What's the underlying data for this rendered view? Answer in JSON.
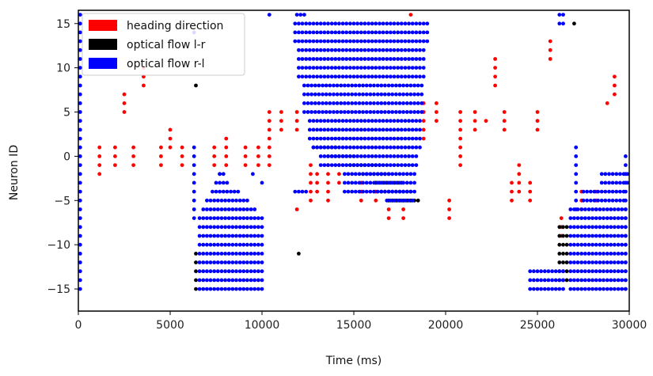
{
  "chart_data": {
    "type": "scatter",
    "title": "",
    "xlabel": "Time (ms)",
    "ylabel": "Neuron ID",
    "xlim": [
      0,
      30000
    ],
    "ylim": [
      -17.5,
      16.5
    ],
    "xticks": [
      0,
      5000,
      10000,
      15000,
      20000,
      25000,
      30000
    ],
    "yticks": [
      -15,
      -10,
      -5,
      0,
      5,
      10,
      15
    ],
    "grid": false,
    "legend": {
      "placement": "top-left"
    },
    "series": [
      {
        "name": "heading direction",
        "color": "#ff0000",
        "clusters": [
          {
            "x": [
              1150
            ],
            "y": [
              1,
              -2
            ]
          },
          {
            "x": [
              2000
            ],
            "y": [
              1,
              -1
            ]
          },
          {
            "x": [
              2500
            ],
            "y": [
              7,
              5
            ]
          },
          {
            "x": [
              3000
            ],
            "y": [
              1,
              -1
            ]
          },
          {
            "x": [
              3550
            ],
            "y": [
              10,
              8
            ]
          },
          {
            "x": [
              4500
            ],
            "y": [
              1,
              -1
            ]
          },
          {
            "x": [
              5000
            ],
            "y": [
              3,
              1
            ]
          },
          {
            "x": [
              5650
            ],
            "y": [
              1,
              -1
            ]
          },
          {
            "x": [
              7400
            ],
            "y": [
              1,
              -1
            ]
          },
          {
            "x": [
              8050
            ],
            "y": [
              2,
              -1
            ]
          },
          {
            "x": [
              9100
            ],
            "y": [
              1,
              -1
            ]
          },
          {
            "x": [
              9800
            ],
            "y": [
              1,
              -1
            ]
          },
          {
            "x": [
              10400
            ],
            "y": [
              5,
              -1
            ]
          },
          {
            "x": [
              11050
            ],
            "y": [
              5,
              3
            ]
          },
          {
            "x": [
              11900
            ],
            "y": [
              5,
              3
            ]
          },
          {
            "x": [
              11900
            ],
            "y": [
              -6,
              -6
            ]
          },
          {
            "x": [
              12650
            ],
            "y": [
              -1,
              -5
            ]
          },
          {
            "x": [
              13000
            ],
            "y": [
              -2,
              -4
            ]
          },
          {
            "x": [
              13600
            ],
            "y": [
              -1,
              -5
            ]
          },
          {
            "x": [
              14200
            ],
            "y": [
              -1,
              -3
            ]
          },
          {
            "x": [
              15400
            ],
            "y": [
              -3,
              -5
            ]
          },
          {
            "x": [
              16200
            ],
            "y": [
              -3,
              -5
            ]
          },
          {
            "x": [
              16900
            ],
            "y": [
              -6,
              -7
            ]
          },
          {
            "x": [
              17700
            ],
            "y": [
              -6,
              -7
            ]
          },
          {
            "x": [
              18100
            ],
            "y": [
              16,
              16
            ]
          },
          {
            "x": [
              18800
            ],
            "y": [
              6,
              2
            ]
          },
          {
            "x": [
              19500
            ],
            "y": [
              6,
              4
            ]
          },
          {
            "x": [
              20200
            ],
            "y": [
              -5,
              -7
            ]
          },
          {
            "x": [
              20800
            ],
            "y": [
              5,
              -1
            ]
          },
          {
            "x": [
              21600
            ],
            "y": [
              5,
              3
            ]
          },
          {
            "x": [
              22200
            ],
            "y": [
              4,
              4
            ]
          },
          {
            "x": [
              22700
            ],
            "y": [
              11,
              8
            ]
          },
          {
            "x": [
              23200
            ],
            "y": [
              5,
              3
            ]
          },
          {
            "x": [
              23600
            ],
            "y": [
              -3,
              -5
            ]
          },
          {
            "x": [
              24000
            ],
            "y": [
              -1,
              -4
            ]
          },
          {
            "x": [
              24600
            ],
            "y": [
              -3,
              -5
            ]
          },
          {
            "x": [
              25000
            ],
            "y": [
              5,
              3
            ]
          },
          {
            "x": [
              25700
            ],
            "y": [
              13,
              11
            ]
          },
          {
            "x": [
              26300
            ],
            "y": [
              -7,
              -9
            ]
          },
          {
            "x": [
              27400
            ],
            "y": [
              -4,
              -6
            ]
          },
          {
            "x": [
              28200
            ],
            "y": [
              -4,
              -6
            ]
          },
          {
            "x": [
              28800
            ],
            "y": [
              6,
              6
            ]
          },
          {
            "x": [
              29200
            ],
            "y": [
              9,
              7
            ]
          }
        ]
      },
      {
        "name": "optical flow l-r",
        "color": "#000000",
        "clusters": [
          {
            "x": [
              6400
            ],
            "y": [
              8,
              8
            ]
          },
          {
            "x": [
              6400
            ],
            "y": [
              -11,
              -15
            ]
          },
          {
            "x": [
              7700
            ],
            "y": [
              -2,
              -2
            ]
          },
          {
            "x": [
              12000
            ],
            "y": [
              -11,
              -11
            ]
          },
          {
            "x": [
              12800,
              14000
            ],
            "y": [
              1,
              1
            ]
          },
          {
            "x": [
              13600,
              15000
            ],
            "y": [
              0,
              0
            ]
          },
          {
            "x": [
              14800,
              16500
            ],
            "y": [
              -1,
              -1
            ]
          },
          {
            "x": [
              15500,
              17000
            ],
            "y": [
              -2,
              -2
            ]
          },
          {
            "x": [
              16200,
              17700
            ],
            "y": [
              -3,
              -3
            ]
          },
          {
            "x": [
              16500,
              18100
            ],
            "y": [
              -4,
              -4
            ]
          },
          {
            "x": [
              16900,
              18500
            ],
            "y": [
              -5,
              -5
            ]
          },
          {
            "x": [
              27000
            ],
            "y": [
              15,
              15
            ]
          },
          {
            "x": [
              26200,
              26700
            ],
            "y": [
              -8,
              -14
            ]
          }
        ]
      },
      {
        "name": "optical flow r-l",
        "color": "#0000ff",
        "clusters": [
          {
            "x": [
              100
            ],
            "y": [
              16,
              -15
            ]
          },
          {
            "x": [
              6300
            ],
            "y": [
              14,
              14
            ]
          },
          {
            "x": [
              6300
            ],
            "y": [
              1,
              -7
            ]
          },
          {
            "x": [
              7700,
              7900
            ],
            "y": [
              -2,
              -2
            ]
          },
          {
            "x": [
              7500,
              8200
            ],
            "y": [
              -3,
              -3
            ]
          },
          {
            "x": [
              7300,
              8700
            ],
            "y": [
              -4,
              -4
            ]
          },
          {
            "x": [
              7000,
              9300
            ],
            "y": [
              -5,
              -5
            ]
          },
          {
            "x": [
              6800,
              9600
            ],
            "y": [
              -6,
              -6
            ]
          },
          {
            "x": [
              6600,
              10100
            ],
            "y": [
              -7,
              -15
            ]
          },
          {
            "x": [
              9500
            ],
            "y": [
              -2,
              -2
            ]
          },
          {
            "x": [
              10000
            ],
            "y": [
              -3,
              -3
            ]
          },
          {
            "x": [
              10400
            ],
            "y": [
              16,
              16
            ]
          },
          {
            "x": [
              11900,
              12300
            ],
            "y": [
              16,
              16
            ]
          },
          {
            "x": [
              11800,
              12400
            ],
            "y": [
              -4,
              -4
            ]
          },
          {
            "x": [
              11800,
              19000
            ],
            "y": [
              15,
              13
            ]
          },
          {
            "x": [
              12000,
              18900
            ],
            "y": [
              12,
              9
            ]
          },
          {
            "x": [
              12300,
              18800
            ],
            "y": [
              8,
              5
            ]
          },
          {
            "x": [
              12600,
              18700
            ],
            "y": [
              4,
              2
            ]
          },
          {
            "x": [
              12800,
              18600
            ],
            "y": [
              1,
              1
            ]
          },
          {
            "x": [
              13200,
              18500
            ],
            "y": [
              0,
              -1
            ]
          },
          {
            "x": [
              14500,
              18400
            ],
            "y": [
              -2,
              -4
            ]
          },
          {
            "x": [
              16800,
              18300
            ],
            "y": [
              -5,
              -5
            ]
          },
          {
            "x": [
              26200,
              26500
            ],
            "y": [
              16,
              15
            ]
          },
          {
            "x": [
              26800,
              29800
            ],
            "y": [
              -6,
              -15
            ]
          },
          {
            "x": [
              27500,
              29800
            ],
            "y": [
              -4,
              -5
            ]
          },
          {
            "x": [
              28500,
              29900
            ],
            "y": [
              -2,
              -3
            ]
          },
          {
            "x": [
              24600,
              26500
            ],
            "y": [
              -13,
              -15
            ]
          },
          {
            "x": [
              27100
            ],
            "y": [
              1,
              -6
            ]
          },
          {
            "x": [
              29800
            ],
            "y": [
              0,
              -15
            ]
          }
        ]
      }
    ]
  }
}
